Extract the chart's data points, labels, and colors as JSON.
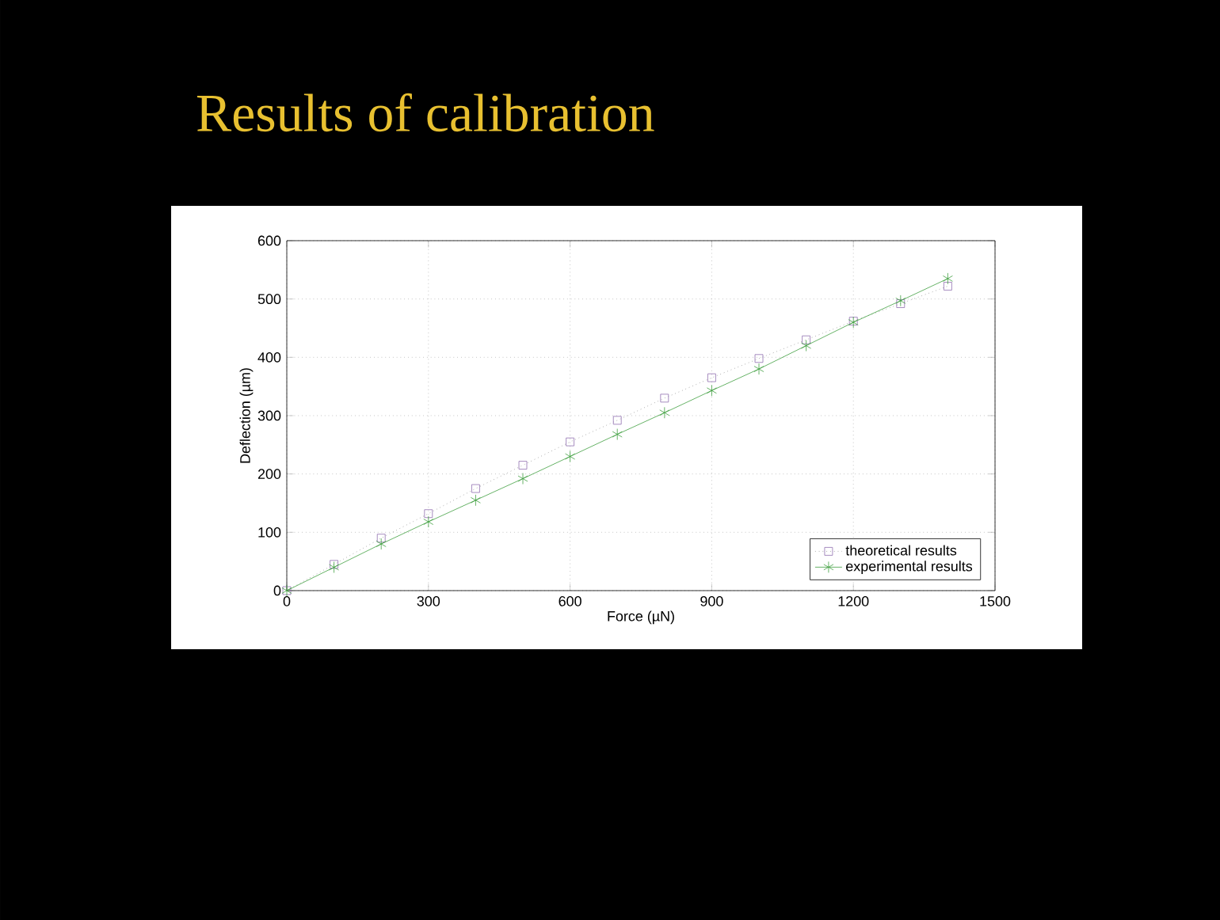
{
  "chart_data": {
    "type": "line",
    "title": "Results of calibration",
    "xlabel": "Force (µN)",
    "ylabel": "Deflection (µm)",
    "x": [
      0,
      100,
      200,
      300,
      400,
      500,
      600,
      700,
      800,
      900,
      1000,
      1100,
      1200,
      1300,
      1400
    ],
    "series": [
      {
        "name": "theoretical results",
        "color": "#9070b0",
        "marker": "square",
        "line_style": "dotted",
        "values": [
          0,
          45,
          90,
          132,
          175,
          215,
          255,
          292,
          330,
          365,
          398,
          430,
          462,
          492,
          522
        ]
      },
      {
        "name": "experimental results",
        "color": "#40a040",
        "marker": "cross",
        "line_style": "solid",
        "values": [
          0,
          40,
          80,
          118,
          155,
          192,
          230,
          268,
          305,
          343,
          380,
          420,
          460,
          497,
          535
        ]
      }
    ],
    "xlim": [
      0,
      1500
    ],
    "ylim": [
      0,
      600
    ],
    "xticks": [
      0,
      300,
      600,
      900,
      1200,
      1500
    ],
    "yticks": [
      0,
      100,
      200,
      300,
      400,
      500,
      600
    ],
    "grid": true,
    "legend": "bottom right"
  }
}
